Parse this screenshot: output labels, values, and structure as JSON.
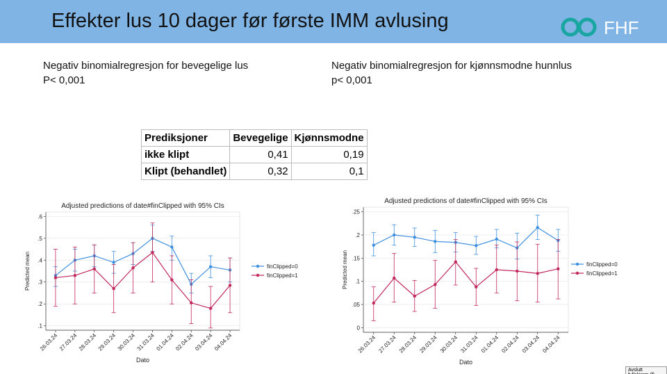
{
  "header": {
    "title": "Effekter lus 10 dager før første IMM avlusing",
    "logo": "FHF"
  },
  "left_text": {
    "line1": "Negativ binomialregresjon for bevegelige lus",
    "line2": "P< 0,001"
  },
  "right_text": {
    "line1": "Negativ binomialregresjon for kjønnsmodne hunnlus",
    "line2": "p< 0,001"
  },
  "table": {
    "header": [
      "Prediksjoner",
      "Bevegelige",
      "Kjønnsmodne"
    ],
    "rows": [
      [
        "ikke klipt",
        "0,41",
        "0,19"
      ],
      [
        "Klipt (behandlet)",
        "0,32",
        "0,1"
      ]
    ]
  },
  "chart_data": [
    {
      "type": "line",
      "title": "Adjusted predictions of date#finClipped with 95% CIs",
      "x_label": "Dato",
      "y_label": "Predicted mean",
      "categories": [
        "26.03.24",
        "27.03.24",
        "28.03.24",
        "29.03.24",
        "30.03.24",
        "31.03.24",
        "01.04.24",
        "02.04.24",
        "03.04.24",
        "04.04.24"
      ],
      "ylim": [
        0.08,
        0.62
      ],
      "yticks": [
        {
          "value": 0.1,
          "label": ".1"
        },
        {
          "value": 0.2,
          "label": ".2"
        },
        {
          "value": 0.3,
          "label": ".3"
        },
        {
          "value": 0.4,
          "label": ".4"
        },
        {
          "value": 0.5,
          "label": ".5"
        },
        {
          "value": 0.6,
          "label": ".6"
        }
      ],
      "grid": true,
      "series": [
        {
          "name": "finClipped=0",
          "color": "#3d8fe0",
          "values": [
            0.33,
            0.4,
            0.42,
            0.39,
            0.43,
            0.5,
            0.46,
            0.29,
            0.37,
            0.355
          ],
          "ci_low": [
            0.28,
            0.35,
            0.37,
            0.34,
            0.38,
            0.44,
            0.4,
            0.25,
            0.32,
            0.3
          ],
          "ci_high": [
            0.37,
            0.45,
            0.47,
            0.44,
            0.48,
            0.56,
            0.51,
            0.34,
            0.42,
            0.41
          ]
        },
        {
          "name": "finClipped=1",
          "color": "#c2275a",
          "values": [
            0.32,
            0.33,
            0.36,
            0.27,
            0.365,
            0.435,
            0.31,
            0.205,
            0.18,
            0.285
          ],
          "ci_low": [
            0.19,
            0.2,
            0.25,
            0.16,
            0.25,
            0.3,
            0.2,
            0.11,
            0.09,
            0.16
          ],
          "ci_high": [
            0.45,
            0.46,
            0.47,
            0.38,
            0.48,
            0.57,
            0.42,
            0.31,
            0.28,
            0.41
          ]
        }
      ]
    },
    {
      "type": "line",
      "title": "Adjusted predictions of date#finClipped with 95% CIs",
      "x_label": "Dato",
      "y_label": "Predicted mean",
      "categories": [
        "26.03.24",
        "27.03.24",
        "28.03.24",
        "29.03.24",
        "30.03.24",
        "31.03.24",
        "01.04.24",
        "02.04.24",
        "03.04.24",
        "04.04.24"
      ],
      "ylim": [
        -0.01,
        0.26
      ],
      "yticks": [
        0,
        {
          "value": 0.05,
          "label": ".05"
        },
        {
          "value": 0.1,
          "label": ".1"
        },
        {
          "value": 0.15,
          "label": ".15"
        },
        {
          "value": 0.2,
          "label": ".2"
        },
        {
          "value": 0.25,
          "label": ".25"
        }
      ],
      "grid": true,
      "series": [
        {
          "name": "finClipped=0",
          "color": "#3d8fe0",
          "values": [
            0.178,
            0.2,
            0.195,
            0.186,
            0.184,
            0.177,
            0.191,
            0.172,
            0.216,
            0.188
          ],
          "ci_low": [
            0.155,
            0.178,
            0.175,
            0.162,
            0.163,
            0.158,
            0.172,
            0.148,
            0.19,
            0.165
          ],
          "ci_high": [
            0.205,
            0.222,
            0.215,
            0.21,
            0.205,
            0.197,
            0.212,
            0.204,
            0.243,
            0.212
          ]
        },
        {
          "name": "finClipped=1",
          "color": "#c2275a",
          "values": [
            0.053,
            0.107,
            0.068,
            0.093,
            0.142,
            0.088,
            0.125,
            0.122,
            0.117,
            0.127
          ],
          "ci_low": [
            0.015,
            0.055,
            0.035,
            0.042,
            0.092,
            0.048,
            0.075,
            0.058,
            0.055,
            0.062
          ],
          "ci_high": [
            0.088,
            0.16,
            0.102,
            0.145,
            0.19,
            0.128,
            0.178,
            0.185,
            0.18,
            0.19
          ]
        }
      ]
    }
  ],
  "button": "Avslutt fullskjerm (f)"
}
